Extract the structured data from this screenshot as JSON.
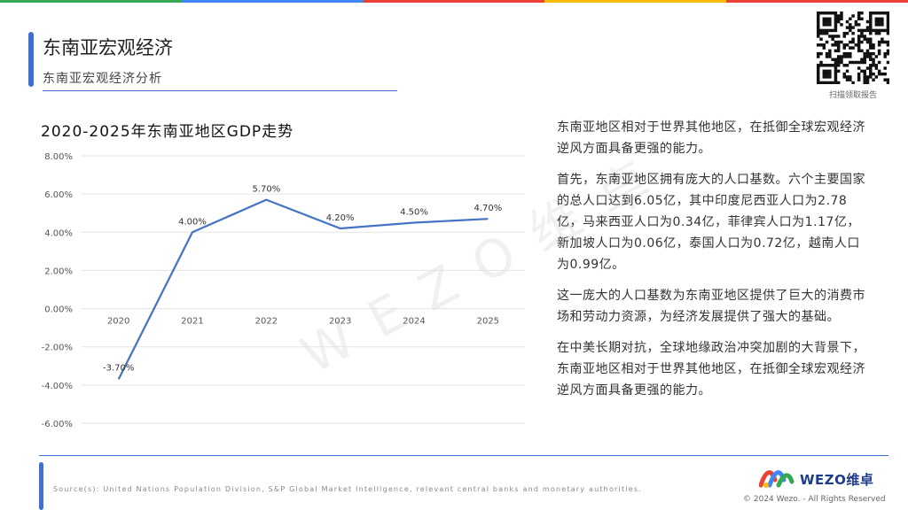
{
  "colors": {
    "accent": "#3f6fd0",
    "line": "#4472c4",
    "topbar": [
      "#34a853",
      "#4285f4",
      "#ea4335",
      "#fbbc05",
      "#ea4335"
    ]
  },
  "header": {
    "title": "东南亚宏观经济",
    "subtitle": "东南亚宏观经济分析",
    "qr_caption": "扫描领取报告"
  },
  "chart_title": "2020-2025年东南亚地区GDP走势",
  "chart_data": {
    "type": "line",
    "title": "2020-2025年东南亚地区GDP走势",
    "categories": [
      "2020",
      "2021",
      "2022",
      "2023",
      "2024",
      "2025"
    ],
    "series": [
      {
        "values": [
          -3.7,
          4.0,
          5.7,
          4.2,
          4.5,
          4.7
        ],
        "labels": [
          "-3.70%",
          "4.00%",
          "5.70%",
          "4.20%",
          "4.50%",
          "4.70%"
        ]
      }
    ],
    "yticks": [
      8,
      6,
      4,
      2,
      0,
      -2,
      -4,
      -6
    ],
    "ytick_labels": [
      "8.00%",
      "6.00%",
      "4.00%",
      "2.00%",
      "0.00%",
      "-2.00%",
      "-4.00%",
      "-6.00%"
    ],
    "ylim": [
      -6,
      8
    ],
    "grid": true,
    "legend": "none",
    "xlabel": "",
    "ylabel": ""
  },
  "text": {
    "p1": "东南亚地区相对于世界其他地区，在抵御全球宏观经济逆风方面具备更强的能力。",
    "p2": "首先，东南亚地区拥有庞大的人口基数。六个主要国家的总人口达到6.05亿，其中印度尼西亚人口为2.78亿，马来西亚人口为0.34亿，菲律宾人口为1.17亿，新加坡人口为0.06亿，泰国人口为0.72亿，越南人口为0.99亿。",
    "p3": "这一庞大的人口基数为东南亚地区提供了巨大的消费市场和劳动力资源，为经济发展提供了强大的基础。",
    "p4": "在中美长期对抗，全球地缘政治冲突加剧的大背景下，东南亚地区相对于世界其他地区，在抵御全球宏观经济逆风方面具备更强的能力。"
  },
  "watermark": "WEZO维卓",
  "footer": {
    "source": "Source(s): United Nations Population Division, S&P Global Market Intelligence, relevant central banks and monetary authorities.",
    "brand": "WEZO维卓",
    "copyright": "© 2024 Wezo. - All Rights Reserved"
  }
}
